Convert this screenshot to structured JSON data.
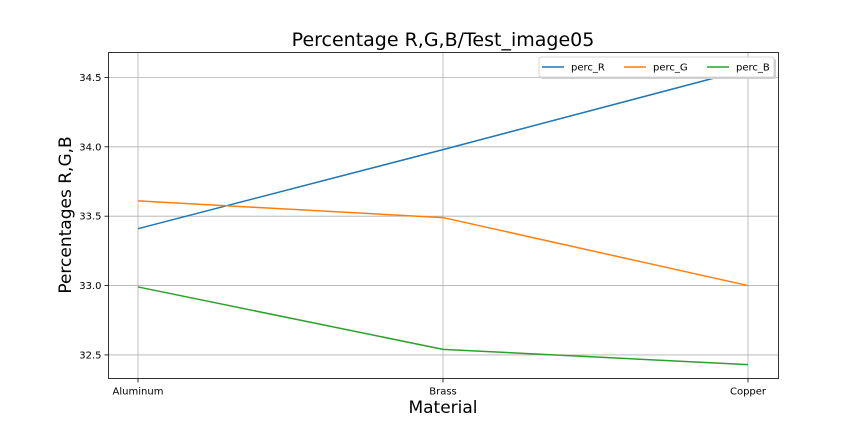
{
  "chart_data": {
    "type": "line",
    "title": "Percentage R,G,B/Test_image05",
    "xlabel": "Material",
    "ylabel": "Percentages R,G,B",
    "categories": [
      "Aluminum",
      "Brass",
      "Copper"
    ],
    "ylim": [
      32.33,
      34.68
    ],
    "yticks": [
      32.5,
      33.0,
      33.5,
      34.0,
      34.5
    ],
    "ytick_labels": [
      "32.5",
      "33.0",
      "33.5",
      "34.0",
      "34.5"
    ],
    "grid": true,
    "legend_position": "top-right",
    "series": [
      {
        "name": "perc_R",
        "color": "#1f77b4",
        "values": [
          33.41,
          33.98,
          34.56
        ]
      },
      {
        "name": "perc_G",
        "color": "#ff7f0e",
        "values": [
          33.61,
          33.49,
          33.0
        ]
      },
      {
        "name": "perc_B",
        "color": "#2ca02c",
        "values": [
          32.99,
          32.54,
          32.43
        ]
      }
    ]
  }
}
